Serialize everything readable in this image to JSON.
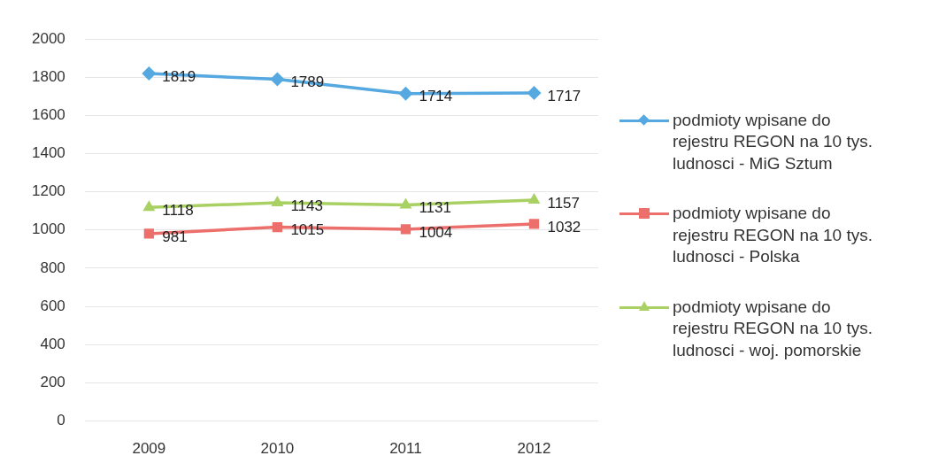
{
  "chart_data": {
    "type": "line",
    "categories": [
      "2009",
      "2010",
      "2011",
      "2012"
    ],
    "series": [
      {
        "name": "podmioty wpisane do rejestru REGON na 10 tys. ludnosci - MiG Sztum",
        "color": "#55a8e0",
        "marker": "diamond",
        "values": [
          1819,
          1789,
          1714,
          1717
        ]
      },
      {
        "name": "podmioty wpisane do rejestru REGON na 10 tys. ludnosci - Polska",
        "color": "#ec6f6b",
        "marker": "square",
        "values": [
          981,
          1015,
          1004,
          1032
        ]
      },
      {
        "name": "podmioty wpisane do rejestru REGON na 10 tys. ludnosci - woj. pomorskie",
        "color": "#a8d062",
        "marker": "triangle",
        "values": [
          1118,
          1143,
          1131,
          1157
        ]
      }
    ],
    "ylim": [
      0,
      2000
    ],
    "yticks": [
      0,
      200,
      400,
      600,
      800,
      1000,
      1200,
      1400,
      1600,
      1800,
      2000
    ],
    "grid": "y",
    "legend": "right",
    "data_labels": true,
    "line_style": "solid"
  }
}
